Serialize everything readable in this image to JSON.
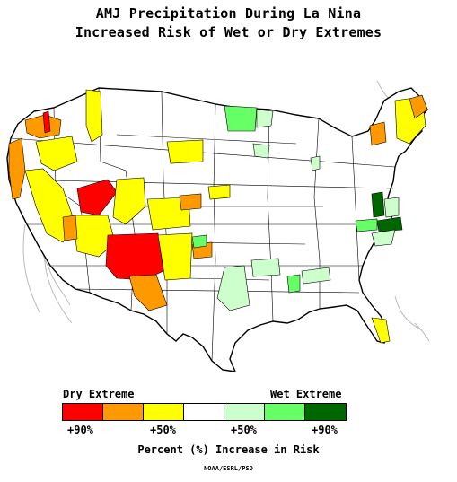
{
  "title": {
    "line1": "AMJ Precipitation During La Nina",
    "line2": "Increased Risk of Wet or Dry Extremes"
  },
  "legend": {
    "dry_label": "Dry Extreme",
    "wet_label": "Wet Extreme",
    "colors": [
      "#ff0000",
      "#ff9900",
      "#ffff00",
      "#ffffff",
      "#ccffcc",
      "#66ff66",
      "#006600"
    ],
    "category_names": [
      "dry-90",
      "dry-70",
      "dry-50",
      "no-signal",
      "wet-50",
      "wet-70",
      "wet-90"
    ],
    "ticks": [
      "+90%",
      "+50%",
      "+50%",
      "+90%"
    ]
  },
  "caption": "Percent (%) Increase in Risk",
  "credit": "NOAA/ESRL/PSD",
  "map": {
    "outline_color": "#000000",
    "division_line_color": "#000000",
    "background_color": "#ffffff"
  }
}
